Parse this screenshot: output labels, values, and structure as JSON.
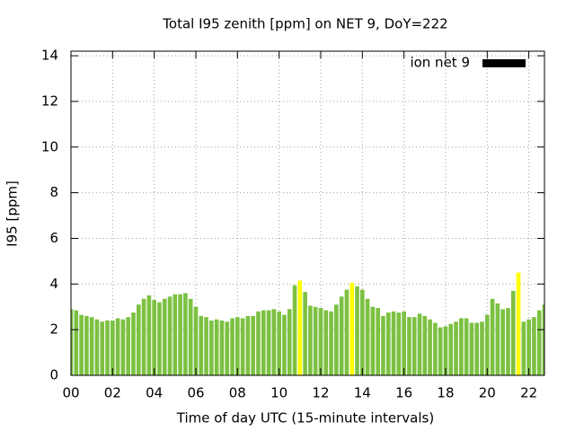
{
  "chart_data": {
    "type": "bar",
    "title": "Total I95 zenith [ppm] on NET 9, DoY=222",
    "x_label": "Time of day UTC (15-minute intervals)",
    "y_label": "I95 [ppm]",
    "legend_position": "top-right",
    "grid": true,
    "xlim": [
      0,
      22.75
    ],
    "ylim": [
      0,
      14.2
    ],
    "xticks": [
      {
        "value": 0,
        "label": "00"
      },
      {
        "value": 2,
        "label": "02"
      },
      {
        "value": 4,
        "label": "04"
      },
      {
        "value": 6,
        "label": "06"
      },
      {
        "value": 8,
        "label": "08"
      },
      {
        "value": 10,
        "label": "10"
      },
      {
        "value": 12,
        "label": "12"
      },
      {
        "value": 14,
        "label": "14"
      },
      {
        "value": 16,
        "label": "16"
      },
      {
        "value": 18,
        "label": "18"
      },
      {
        "value": 20,
        "label": "20"
      },
      {
        "value": 22,
        "label": "22"
      }
    ],
    "yticks": [
      0,
      2,
      4,
      6,
      8,
      10,
      12,
      14
    ],
    "x": [
      0,
      0.25,
      0.5,
      0.75,
      1,
      1.25,
      1.5,
      1.75,
      2,
      2.25,
      2.5,
      2.75,
      3,
      3.25,
      3.5,
      3.75,
      4,
      4.25,
      4.5,
      4.75,
      5,
      5.25,
      5.5,
      5.75,
      6,
      6.25,
      6.5,
      6.75,
      7,
      7.25,
      7.5,
      7.75,
      8,
      8.25,
      8.5,
      8.75,
      9,
      9.25,
      9.5,
      9.75,
      10,
      10.25,
      10.5,
      10.75,
      11,
      11.25,
      11.5,
      11.75,
      12,
      12.25,
      12.5,
      12.75,
      13,
      13.25,
      13.5,
      13.75,
      14,
      14.25,
      14.5,
      14.75,
      15,
      15.25,
      15.5,
      15.75,
      16,
      16.25,
      16.5,
      16.75,
      17,
      17.25,
      17.5,
      17.75,
      18,
      18.25,
      18.5,
      18.75,
      19,
      19.25,
      19.5,
      19.75,
      20,
      20.25,
      20.5,
      20.75,
      21,
      21.25,
      21.5,
      21.75,
      22,
      22.25,
      22.5,
      22.75
    ],
    "series": [
      {
        "name": "ion net 9",
        "color": "#000000",
        "values": [
          2.9,
          2.85,
          2.65,
          2.6,
          2.55,
          2.45,
          2.35,
          2.4,
          2.4,
          2.5,
          2.45,
          2.55,
          2.75,
          3.1,
          3.35,
          3.5,
          3.3,
          3.2,
          3.35,
          3.45,
          3.55,
          3.55,
          3.6,
          3.35,
          3.0,
          2.6,
          2.55,
          2.4,
          2.45,
          2.4,
          2.35,
          2.5,
          2.55,
          2.5,
          2.6,
          2.6,
          2.8,
          2.85,
          2.85,
          2.9,
          2.8,
          2.65,
          2.9,
          3.95,
          4.15,
          3.65,
          3.05,
          3.0,
          2.95,
          2.85,
          2.8,
          3.1,
          3.45,
          3.75,
          4.05,
          3.9,
          3.75,
          3.35,
          3.0,
          2.95,
          2.6,
          2.75,
          2.8,
          2.75,
          2.8,
          2.55,
          2.55,
          2.7,
          2.6,
          2.45,
          2.3,
          2.1,
          2.15,
          2.25,
          2.35,
          2.5,
          2.5,
          2.3,
          2.3,
          2.35,
          2.65,
          3.35,
          3.15,
          2.9,
          2.95,
          3.7,
          4.5,
          2.35,
          2.45,
          2.55,
          2.85,
          3.1
        ],
        "bar_colors": [
          "#7cc142",
          "#7cc142",
          "#7cc142",
          "#7cc142",
          "#7cc142",
          "#7cc142",
          "#7cc142",
          "#7cc142",
          "#7cc142",
          "#7cc142",
          "#7cc142",
          "#7cc142",
          "#7cc142",
          "#7cc142",
          "#7cc142",
          "#7cc142",
          "#7cc142",
          "#7cc142",
          "#7cc142",
          "#7cc142",
          "#7cc142",
          "#7cc142",
          "#7cc142",
          "#7cc142",
          "#7cc142",
          "#7cc142",
          "#7cc142",
          "#7cc142",
          "#7cc142",
          "#7cc142",
          "#7cc142",
          "#7cc142",
          "#7cc142",
          "#7cc142",
          "#7cc142",
          "#7cc142",
          "#7cc142",
          "#7cc142",
          "#7cc142",
          "#7cc142",
          "#7cc142",
          "#7cc142",
          "#7cc142",
          "#7cc142",
          "#ffff00",
          "#7cc142",
          "#7cc142",
          "#7cc142",
          "#7cc142",
          "#7cc142",
          "#7cc142",
          "#7cc142",
          "#7cc142",
          "#7cc142",
          "#ffff00",
          "#7cc142",
          "#7cc142",
          "#7cc142",
          "#7cc142",
          "#7cc142",
          "#7cc142",
          "#7cc142",
          "#7cc142",
          "#7cc142",
          "#7cc142",
          "#7cc142",
          "#7cc142",
          "#7cc142",
          "#7cc142",
          "#7cc142",
          "#7cc142",
          "#7cc142",
          "#7cc142",
          "#7cc142",
          "#7cc142",
          "#7cc142",
          "#7cc142",
          "#7cc142",
          "#7cc142",
          "#7cc142",
          "#7cc142",
          "#7cc142",
          "#7cc142",
          "#7cc142",
          "#7cc142",
          "#7cc142",
          "#ffff00",
          "#7cc142",
          "#7cc142",
          "#7cc142",
          "#7cc142",
          "#7cc142"
        ]
      }
    ]
  }
}
